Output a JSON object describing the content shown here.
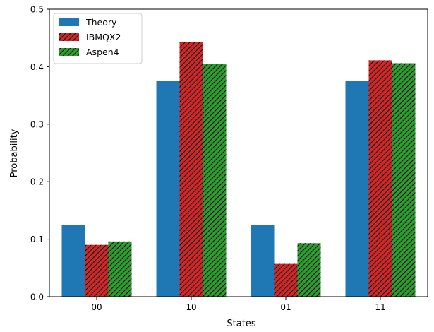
{
  "chart_data": {
    "type": "bar",
    "title": "",
    "xlabel": "States",
    "ylabel": "Probability",
    "categories": [
      "00",
      "10",
      "01",
      "11"
    ],
    "ylim": [
      0,
      0.5
    ],
    "yticks": [
      "0.0",
      "0.1",
      "0.2",
      "0.3",
      "0.4",
      "0.5"
    ],
    "grid": false,
    "legend_position": "top-left",
    "series": [
      {
        "name": "Theory",
        "color": "#1f77b4",
        "hatch": "none",
        "values": [
          0.125,
          0.375,
          0.125,
          0.375
        ]
      },
      {
        "name": "IBMQX2",
        "color": "#d62728",
        "hatch": "diagonal",
        "values": [
          0.09,
          0.443,
          0.057,
          0.411
        ]
      },
      {
        "name": "Aspen4",
        "color": "#2ca02c",
        "hatch": "diagonal",
        "values": [
          0.096,
          0.405,
          0.093,
          0.406
        ]
      }
    ]
  }
}
